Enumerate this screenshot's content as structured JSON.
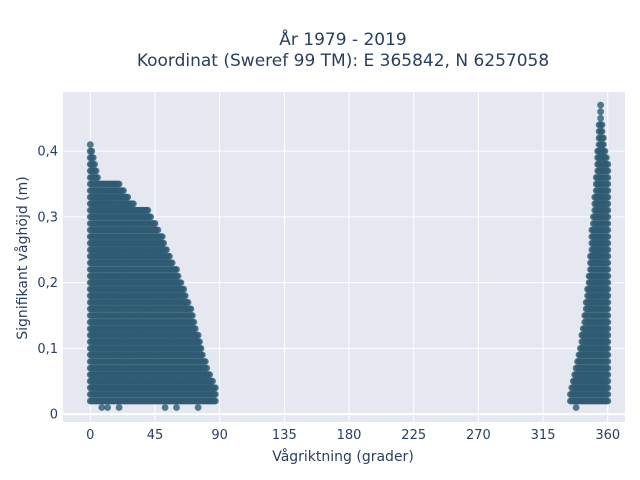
{
  "chart_data": {
    "type": "scatter",
    "title_line1": "År 1979 - 2019",
    "title_line2": "Koordinat (Sweref 99 TM): E 365842, N 6257058",
    "xlabel": "Vågriktning (grader)",
    "ylabel": "Signifikant våghöjd (m)",
    "xlim": [
      -19,
      372
    ],
    "ylim": [
      -0.012,
      0.49
    ],
    "xticks": [
      0,
      45,
      90,
      135,
      180,
      225,
      270,
      315,
      360
    ],
    "yticks": [
      0,
      0.1,
      0.2,
      0.3,
      0.4
    ],
    "ytick_labels": [
      "0",
      "0,1",
      "0,2",
      "0,3",
      "0,4"
    ],
    "marker_color": "#2f5b73",
    "plot_background": "#e5e8f0",
    "grid": true,
    "clusters": [
      {
        "x_range": [
          0,
          87
        ],
        "upper_envelope": [
          [
            0,
            0.41
          ],
          [
            5,
            0.36
          ],
          [
            10,
            0.35
          ],
          [
            20,
            0.35
          ],
          [
            30,
            0.32
          ],
          [
            40,
            0.31
          ],
          [
            45,
            0.29
          ],
          [
            50,
            0.27
          ],
          [
            55,
            0.24
          ],
          [
            60,
            0.22
          ],
          [
            65,
            0.19
          ],
          [
            70,
            0.16
          ],
          [
            75,
            0.12
          ],
          [
            80,
            0.08
          ],
          [
            85,
            0.05
          ],
          [
            87,
            0.04
          ]
        ],
        "lower_bound": 0.02,
        "outliers": [
          [
            8,
            0.01
          ],
          [
            12,
            0.01
          ],
          [
            20,
            0.01
          ],
          [
            52,
            0.01
          ],
          [
            60,
            0.01
          ],
          [
            75,
            0.01
          ]
        ]
      },
      {
        "x_range": [
          334,
          360
        ],
        "upper_envelope": [
          [
            334,
            0.03
          ],
          [
            336,
            0.05
          ],
          [
            340,
            0.09
          ],
          [
            344,
            0.15
          ],
          [
            347,
            0.21
          ],
          [
            349,
            0.28
          ],
          [
            351,
            0.33
          ],
          [
            353,
            0.4
          ],
          [
            354,
            0.44
          ],
          [
            355,
            0.47
          ],
          [
            357,
            0.42
          ],
          [
            358,
            0.4
          ],
          [
            360,
            0.38
          ]
        ],
        "lower_bound": 0.02,
        "outliers": [
          [
            338,
            0.01
          ]
        ]
      }
    ]
  }
}
